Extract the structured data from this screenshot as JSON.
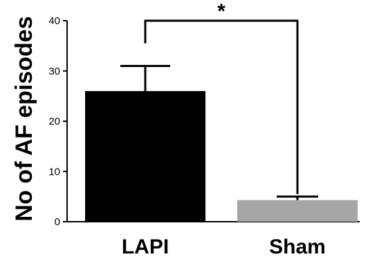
{
  "chart_data": {
    "type": "bar",
    "title": "",
    "xlabel": "",
    "ylabel": "No of AF episodes",
    "ylim": [
      0,
      40
    ],
    "yticks": [
      0,
      10,
      20,
      30,
      40
    ],
    "categories": [
      "LAPI",
      "Sham"
    ],
    "values": [
      26,
      4.3
    ],
    "error_upper": [
      31,
      5
    ],
    "colors": [
      "#000000",
      "#a6a6a6"
    ],
    "significance": {
      "between": [
        "LAPI",
        "Sham"
      ],
      "label": "*"
    },
    "grid": false,
    "legend": "none"
  }
}
